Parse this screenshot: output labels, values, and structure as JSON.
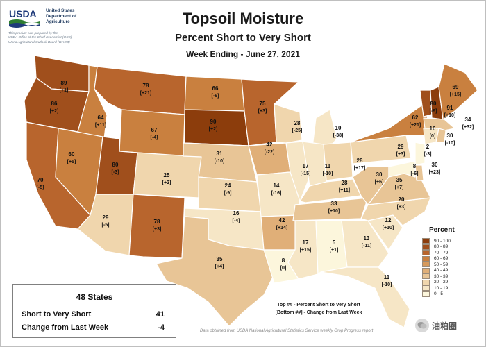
{
  "header": {
    "logo_text": "USDA",
    "agency": [
      "United States",
      "Department of",
      "Agriculture"
    ],
    "prepared_by": [
      "This product was prepared by the",
      "USDA Office of the Chief Economist (OCE)",
      "World Agricultural Outlook Board (WAOB)"
    ],
    "title": "Topsoil Moisture",
    "subtitle": "Percent Short to Very Short",
    "week": "Week Ending - June 27, 2021"
  },
  "summary": {
    "heading": "48 States",
    "rows": [
      {
        "label": "Short to Very Short",
        "value": "41"
      },
      {
        "label": "Change from Last Week",
        "value": "-4"
      }
    ]
  },
  "legend": {
    "title": "Percent",
    "items": [
      {
        "label": "90 - 100",
        "color": "#8c3d0c"
      },
      {
        "label": "80 - 89",
        "color": "#a04f1c"
      },
      {
        "label": "70 - 79",
        "color": "#b8652d"
      },
      {
        "label": "60 - 69",
        "color": "#c9803f"
      },
      {
        "label": "50 - 59",
        "color": "#d79a5c"
      },
      {
        "label": "40 - 49",
        "color": "#e0af78"
      },
      {
        "label": "30 - 39",
        "color": "#e8c596"
      },
      {
        "label": "20 - 29",
        "color": "#f0d6ad"
      },
      {
        "label": "10 - 19",
        "color": "#f6e6c6"
      },
      {
        "label": "0 - 5",
        "color": "#fcf6dc"
      }
    ]
  },
  "key": {
    "line1": "Top ## - Percent Short to Very Short",
    "line2": "[Bottom ##] - Change from Last Week"
  },
  "source": "Data obtained from USDA National Agricultural Statistics Service weekly Crop Progress report",
  "watermark": "油粕圈",
  "states": [
    {
      "id": "WA",
      "value": 89,
      "change": "[+1]"
    },
    {
      "id": "OR",
      "value": 86,
      "change": "[+2]"
    },
    {
      "id": "CA",
      "value": 70,
      "change": "[-5]"
    },
    {
      "id": "ID",
      "value": 64,
      "change": "[+11]"
    },
    {
      "id": "NV",
      "value": 60,
      "change": "[+5]"
    },
    {
      "id": "MT",
      "value": 78,
      "change": "[+21]"
    },
    {
      "id": "WY",
      "value": 67,
      "change": "[-4]"
    },
    {
      "id": "UT",
      "value": 80,
      "change": "[-3]"
    },
    {
      "id": "AZ",
      "value": 29,
      "change": "[-5]"
    },
    {
      "id": "CO",
      "value": 25,
      "change": "[+2]"
    },
    {
      "id": "NM",
      "value": 78,
      "change": "[+3]"
    },
    {
      "id": "ND",
      "value": 66,
      "change": "[-6]"
    },
    {
      "id": "SD",
      "value": 90,
      "change": "[+2]"
    },
    {
      "id": "NE",
      "value": 31,
      "change": "[-10]"
    },
    {
      "id": "KS",
      "value": 24,
      "change": "[-9]"
    },
    {
      "id": "OK",
      "value": 16,
      "change": "[-4]"
    },
    {
      "id": "TX",
      "value": 35,
      "change": "[+4]"
    },
    {
      "id": "MN",
      "value": 75,
      "change": "[+3]"
    },
    {
      "id": "IA",
      "value": 42,
      "change": "[-22]"
    },
    {
      "id": "MO",
      "value": 14,
      "change": "[-16]"
    },
    {
      "id": "AR",
      "value": 42,
      "change": "[+14]"
    },
    {
      "id": "LA",
      "value": 8,
      "change": "[0]"
    },
    {
      "id": "WI",
      "value": 28,
      "change": "[-25]"
    },
    {
      "id": "IL",
      "value": 17,
      "change": "[-15]"
    },
    {
      "id": "MI",
      "value": 10,
      "change": "[-38]"
    },
    {
      "id": "IN",
      "value": 11,
      "change": "[-10]"
    },
    {
      "id": "OH",
      "value": 28,
      "change": "[+17]"
    },
    {
      "id": "KY",
      "value": 28,
      "change": "[+11]"
    },
    {
      "id": "TN",
      "value": 33,
      "change": "[+10]"
    },
    {
      "id": "MS",
      "value": 17,
      "change": "[+15]"
    },
    {
      "id": "AL",
      "value": 5,
      "change": "[+1]"
    },
    {
      "id": "GA",
      "value": 13,
      "change": "[-11]"
    },
    {
      "id": "FL",
      "value": 11,
      "change": "[-10]"
    },
    {
      "id": "SC",
      "value": 12,
      "change": "[+10]"
    },
    {
      "id": "NC",
      "value": 20,
      "change": "[+3]"
    },
    {
      "id": "VA",
      "value": 35,
      "change": "[+7]"
    },
    {
      "id": "WV",
      "value": 30,
      "change": "[+6]"
    },
    {
      "id": "PA",
      "value": 29,
      "change": "[+3]"
    },
    {
      "id": "NY",
      "value": 62,
      "change": "[+21]"
    },
    {
      "id": "VT",
      "value": 80,
      "change": "[-9]"
    },
    {
      "id": "NH",
      "value": 91,
      "change": "[+10]"
    },
    {
      "id": "ME",
      "value": 69,
      "change": "[+15]"
    },
    {
      "id": "MA",
      "value": 34,
      "change": "[+32]"
    },
    {
      "id": "CT",
      "value": 10,
      "change": "[0]"
    },
    {
      "id": "RI",
      "value": 30,
      "change": "[-10]"
    },
    {
      "id": "NJ",
      "value": 2,
      "change": "[-3]"
    },
    {
      "id": "DE",
      "value": 30,
      "change": "[+23]"
    },
    {
      "id": "MD",
      "value": 8,
      "change": "[-6]"
    }
  ]
}
